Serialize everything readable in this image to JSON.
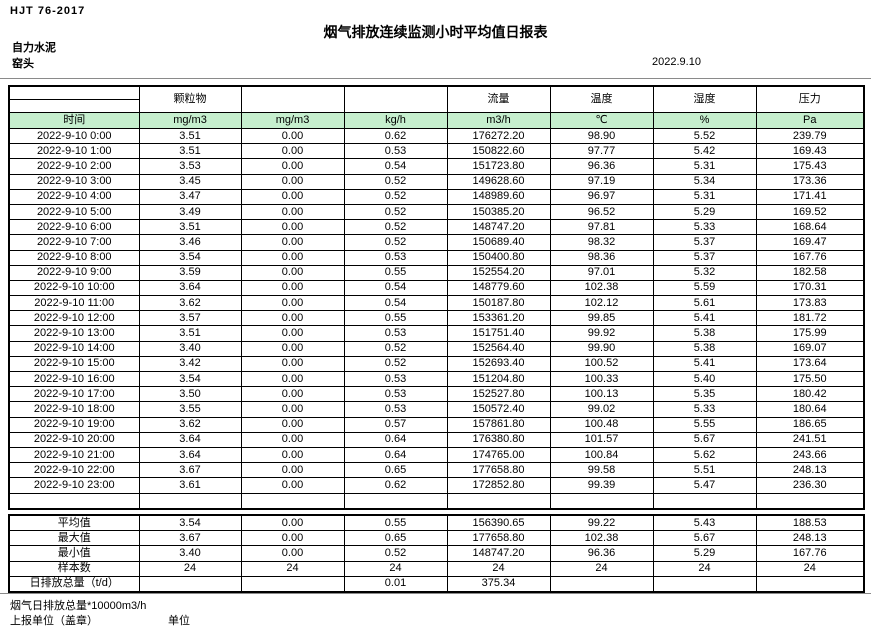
{
  "page": {
    "standard": "HJT  76-2017",
    "title": "烟气排放连续监测小时平均值日报表",
    "company": "自力水泥",
    "location": "窑头",
    "date": "2022.9.10"
  },
  "table": {
    "groups": [
      "颗粒物",
      "",
      "",
      "流量",
      "温度",
      "湿度",
      "压力"
    ],
    "units": [
      "时间",
      "mg/m3",
      "mg/m3",
      "kg/h",
      "m3/h",
      "℃",
      "%",
      "Pa"
    ],
    "rows": [
      [
        "2022-9-10 0:00",
        "3.51",
        "0.00",
        "0.62",
        "176272.20",
        "98.90",
        "5.52",
        "239.79"
      ],
      [
        "2022-9-10 1:00",
        "3.51",
        "0.00",
        "0.53",
        "150822.60",
        "97.77",
        "5.42",
        "169.43"
      ],
      [
        "2022-9-10 2:00",
        "3.53",
        "0.00",
        "0.54",
        "151723.80",
        "96.36",
        "5.31",
        "175.43"
      ],
      [
        "2022-9-10 3:00",
        "3.45",
        "0.00",
        "0.52",
        "149628.60",
        "97.19",
        "5.34",
        "173.36"
      ],
      [
        "2022-9-10 4:00",
        "3.47",
        "0.00",
        "0.52",
        "148989.60",
        "96.97",
        "5.31",
        "171.41"
      ],
      [
        "2022-9-10 5:00",
        "3.49",
        "0.00",
        "0.52",
        "150385.20",
        "96.52",
        "5.29",
        "169.52"
      ],
      [
        "2022-9-10 6:00",
        "3.51",
        "0.00",
        "0.52",
        "148747.20",
        "97.81",
        "5.33",
        "168.64"
      ],
      [
        "2022-9-10 7:00",
        "3.46",
        "0.00",
        "0.52",
        "150689.40",
        "98.32",
        "5.37",
        "169.47"
      ],
      [
        "2022-9-10 8:00",
        "3.54",
        "0.00",
        "0.53",
        "150400.80",
        "98.36",
        "5.37",
        "167.76"
      ],
      [
        "2022-9-10 9:00",
        "3.59",
        "0.00",
        "0.55",
        "152554.20",
        "97.01",
        "5.32",
        "182.58"
      ],
      [
        "2022-9-10 10:00",
        "3.64",
        "0.00",
        "0.54",
        "148779.60",
        "102.38",
        "5.59",
        "170.31"
      ],
      [
        "2022-9-10 11:00",
        "3.62",
        "0.00",
        "0.54",
        "150187.80",
        "102.12",
        "5.61",
        "173.83"
      ],
      [
        "2022-9-10 12:00",
        "3.57",
        "0.00",
        "0.55",
        "153361.20",
        "99.85",
        "5.41",
        "181.72"
      ],
      [
        "2022-9-10 13:00",
        "3.51",
        "0.00",
        "0.53",
        "151751.40",
        "99.92",
        "5.38",
        "175.99"
      ],
      [
        "2022-9-10 14:00",
        "3.40",
        "0.00",
        "0.52",
        "152564.40",
        "99.90",
        "5.38",
        "169.07"
      ],
      [
        "2022-9-10 15:00",
        "3.42",
        "0.00",
        "0.52",
        "152693.40",
        "100.52",
        "5.41",
        "173.64"
      ],
      [
        "2022-9-10 16:00",
        "3.54",
        "0.00",
        "0.53",
        "151204.80",
        "100.33",
        "5.40",
        "175.50"
      ],
      [
        "2022-9-10 17:00",
        "3.50",
        "0.00",
        "0.53",
        "152527.80",
        "100.13",
        "5.35",
        "180.42"
      ],
      [
        "2022-9-10 18:00",
        "3.55",
        "0.00",
        "0.53",
        "150572.40",
        "99.02",
        "5.33",
        "180.64"
      ],
      [
        "2022-9-10 19:00",
        "3.62",
        "0.00",
        "0.57",
        "157861.80",
        "100.48",
        "5.55",
        "186.65"
      ],
      [
        "2022-9-10 20:00",
        "3.64",
        "0.00",
        "0.64",
        "176380.80",
        "101.57",
        "5.67",
        "241.51"
      ],
      [
        "2022-9-10 21:00",
        "3.64",
        "0.00",
        "0.64",
        "174765.00",
        "100.84",
        "5.62",
        "243.66"
      ],
      [
        "2022-9-10 22:00",
        "3.67",
        "0.00",
        "0.65",
        "177658.80",
        "99.58",
        "5.51",
        "248.13"
      ],
      [
        "2022-9-10 23:00",
        "3.61",
        "0.00",
        "0.62",
        "172852.80",
        "99.39",
        "5.47",
        "236.30"
      ]
    ],
    "summary": [
      [
        "平均值",
        "3.54",
        "0.00",
        "0.55",
        "156390.65",
        "99.22",
        "5.43",
        "188.53"
      ],
      [
        "最大值",
        "3.67",
        "0.00",
        "0.65",
        "177658.80",
        "102.38",
        "5.67",
        "248.13"
      ],
      [
        "最小值",
        "3.40",
        "0.00",
        "0.52",
        "148747.20",
        "96.36",
        "5.29",
        "167.76"
      ],
      [
        "样本数",
        "24",
        "24",
        "24",
        "24",
        "24",
        "24",
        "24"
      ],
      [
        "日排放总量（t/d）",
        "",
        "",
        "0.01",
        "375.34",
        "",
        "",
        ""
      ]
    ]
  },
  "footer": {
    "note": "烟气日排放总量*10000m3/h",
    "report_unit": "上报单位（盖章）",
    "unit_label": "单位"
  },
  "colors": {
    "header_fill": "#c6efce",
    "border": "#000000",
    "rule": "#8a8a8a"
  }
}
